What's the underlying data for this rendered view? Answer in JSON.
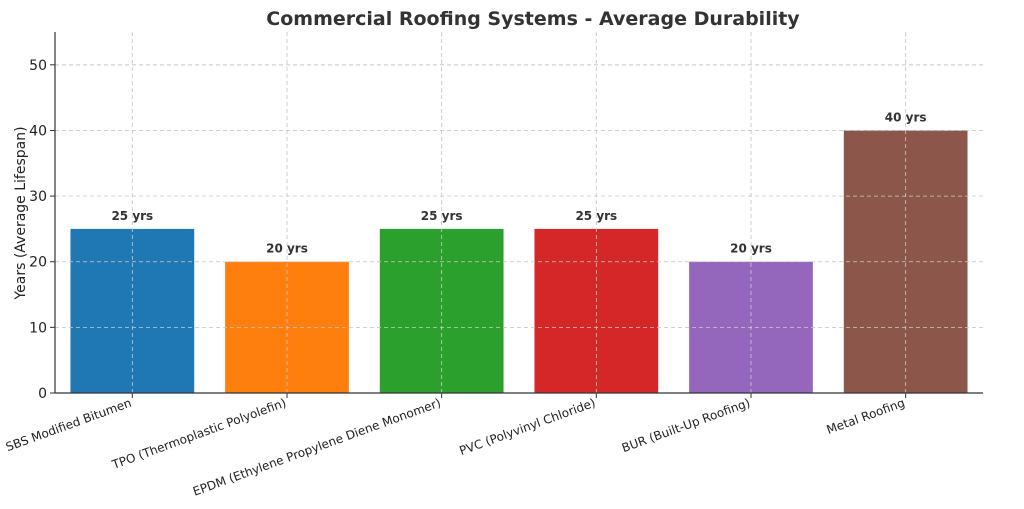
{
  "chart_data": {
    "type": "bar",
    "title": "Commercial Roofing Systems - Average Durability",
    "xlabel": "",
    "ylabel": "Years (Average Lifespan)",
    "ylim": [
      0,
      55
    ],
    "yticks": [
      0,
      10,
      20,
      30,
      40,
      50
    ],
    "grid": true,
    "categories": [
      "SBS Modified Bitumen",
      "TPO (Thermoplastic Polyolefin)",
      "EPDM (Ethylene Propylene Diene Monomer)",
      "PVC (Polyvinyl Chloride)",
      "BUR (Built-Up Roofing)",
      "Metal Roofing"
    ],
    "values": [
      25,
      20,
      25,
      25,
      20,
      40
    ],
    "data_labels": [
      "25 yrs",
      "20 yrs",
      "25 yrs",
      "25 yrs",
      "20 yrs",
      "40 yrs"
    ],
    "colors": [
      "#1f77b4",
      "#ff7f0e",
      "#2ca02c",
      "#d62728",
      "#9467bd",
      "#8c564b"
    ]
  }
}
